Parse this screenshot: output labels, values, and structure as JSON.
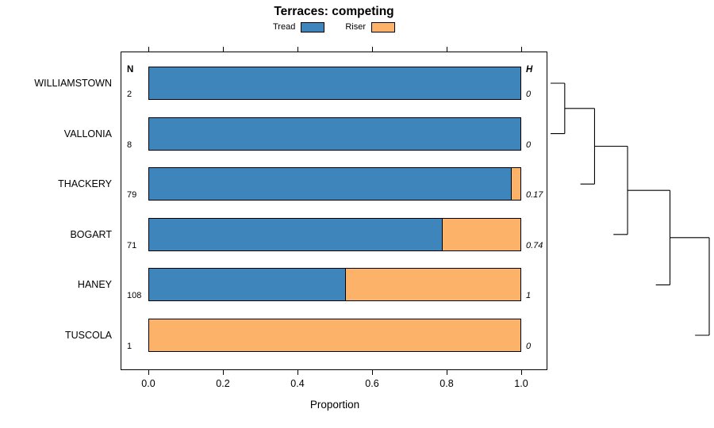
{
  "title": "Terraces: competing",
  "chart_data": {
    "type": "bar",
    "orientation": "horizontal",
    "stacked": true,
    "title": "Terraces: competing",
    "xlabel": "Proportion",
    "xlim": [
      0,
      1
    ],
    "x_ticks": [
      0,
      0.2,
      0.4,
      0.6,
      0.8,
      1.0
    ],
    "grid": false,
    "legend_position": "top-center",
    "legend": [
      {
        "name": "Tread",
        "color": "#3D85BB"
      },
      {
        "name": "Riser",
        "color": "#FCB268"
      }
    ],
    "columns": {
      "n_header": "N",
      "h_header": "H"
    },
    "rows": [
      {
        "site": "WILLIAMSTOWN",
        "n": "2",
        "h": "0",
        "tread": 1.0,
        "riser": 0.0
      },
      {
        "site": "VALLONIA",
        "n": "8",
        "h": "0",
        "tread": 1.0,
        "riser": 0.0
      },
      {
        "site": "THACKERY",
        "n": "79",
        "h": "0.17",
        "tread": 0.975,
        "riser": 0.025
      },
      {
        "site": "BOGART",
        "n": "71",
        "h": "0.74",
        "tread": 0.79,
        "riser": 0.21
      },
      {
        "site": "HANEY",
        "n": "108",
        "h": "1",
        "tread": 0.53,
        "riser": 0.47
      },
      {
        "site": "TUSCOLA",
        "n": "1",
        "h": "0",
        "tread": 0.0,
        "riser": 1.0
      }
    ],
    "dendrogram": {
      "order": [
        "WILLIAMSTOWN",
        "VALLONIA",
        "THACKERY",
        "BOGART",
        "HANEY",
        "TUSCOLA"
      ],
      "structure": "chain",
      "merge_heights": [
        0.08,
        0.27,
        0.48,
        0.75,
        1.0
      ],
      "hang": 0.09
    }
  }
}
